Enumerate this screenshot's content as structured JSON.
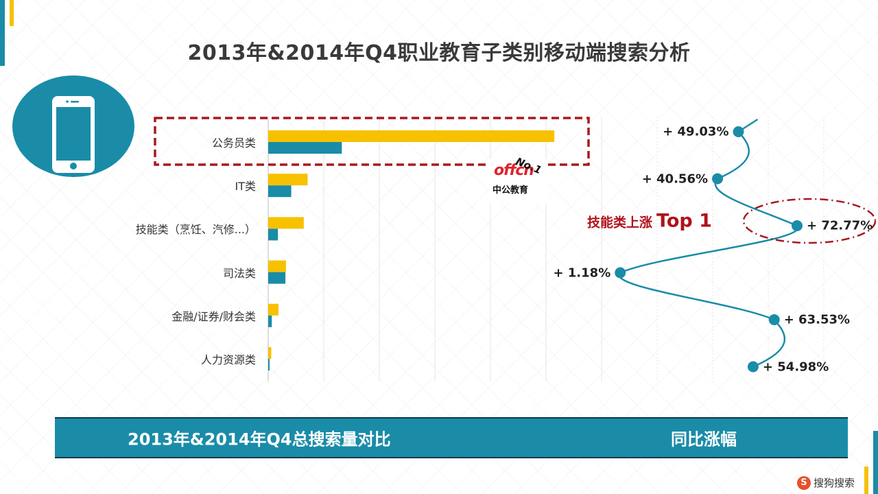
{
  "title": "2013年&2014年Q4职业教育子类别移动端搜索分析",
  "chart_data": {
    "type": "bar",
    "categories": [
      "公务员类",
      "IT类",
      "技能类（烹饪、汽修...）",
      "司法类",
      "金融/证券/财会类",
      "人力资源类"
    ],
    "series": [
      {
        "values": [
          103,
          14.2,
          12.8,
          6.4,
          3.7,
          1.1
        ],
        "color": "#f7c100"
      },
      {
        "values": [
          26.5,
          8.3,
          3.5,
          6.2,
          1.3,
          0.5
        ],
        "color": "#1a8ca8"
      }
    ],
    "xlim": [
      0,
      150
    ],
    "gridlines": true,
    "growth": [
      {
        "label": "+ 49.03%",
        "value": 49.03
      },
      {
        "label": "+ 40.56%",
        "value": 40.56
      },
      {
        "label": "+ 72.77%",
        "value": 72.77
      },
      {
        "label": "+ 1.18%",
        "value": 1.18
      },
      {
        "label": "+ 63.53%",
        "value": 63.53
      },
      {
        "label": "+ 54.98%",
        "value": 54.98
      }
    ],
    "growth_color": "#1a8ca8"
  },
  "highlight": {
    "cn": "技能类上涨",
    "en": "Top 1"
  },
  "logo": {
    "brand": "offcn",
    "sub": "中公教育",
    "rank": "No.1"
  },
  "footer": {
    "left": "2013年&2014年Q4总搜索量对比",
    "right": "同比涨幅"
  },
  "watermark": {
    "icon": "S",
    "text": "搜狗搜索"
  },
  "colors": {
    "accent_blue": "#1a8ca8",
    "accent_yellow": "#f7c100",
    "highlight_red": "#b0121b"
  }
}
